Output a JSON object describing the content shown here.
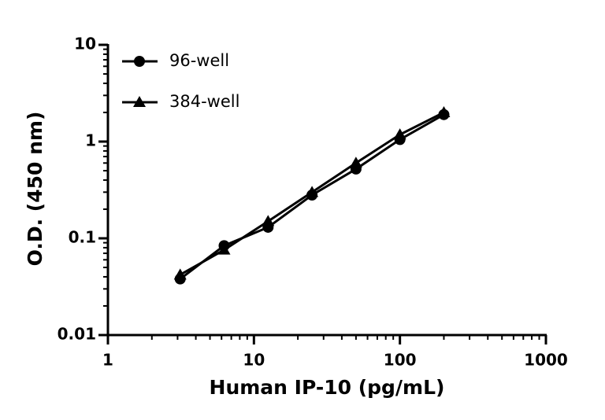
{
  "chart_data": {
    "type": "line",
    "xlabel": "Human IP-10 (pg/mL)",
    "ylabel": "O.D. (450 nm)",
    "x": [
      3.125,
      6.25,
      12.5,
      25,
      50,
      100,
      200
    ],
    "series": [
      {
        "name": "96-well",
        "color": "#000000",
        "marker": "circle",
        "values": [
          0.038,
          0.084,
          0.13,
          0.28,
          0.52,
          1.05,
          1.9
        ]
      },
      {
        "name": "384-well",
        "color": "#000000",
        "marker": "triangle",
        "values": [
          0.042,
          0.076,
          0.15,
          0.3,
          0.6,
          1.18,
          2.0
        ]
      }
    ],
    "xlim": [
      1,
      1000
    ],
    "xticks": [
      1,
      10,
      100,
      1000
    ],
    "xscale": "log",
    "ylim": [
      0.01,
      10
    ],
    "yticks": [
      0.01,
      0.1,
      1,
      10
    ],
    "yscale": "log",
    "legend": "upper left"
  }
}
